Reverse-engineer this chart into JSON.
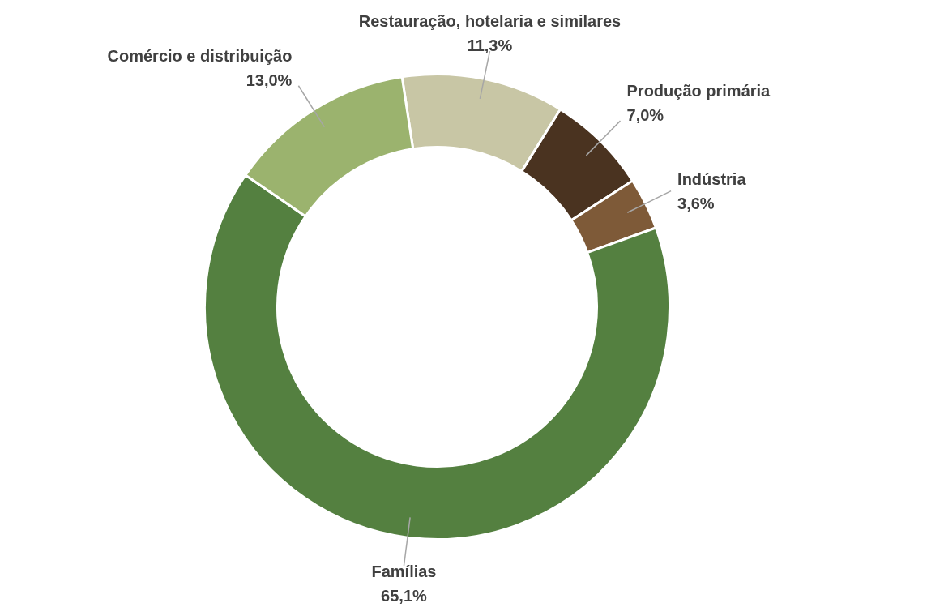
{
  "chart_data": {
    "type": "donut",
    "categories": [
      "Restauração, hotelaria e similares",
      "Produção primária",
      "Indústria",
      "Famílias",
      "Comércio e distribuição"
    ],
    "values": [
      11.3,
      7.0,
      3.6,
      65.1,
      13.0
    ],
    "value_labels": [
      "11,3%",
      "7,0%",
      "3,6%",
      "65,1%",
      "13,0%"
    ],
    "colors": [
      "#c8c6a5",
      "#4a3320",
      "#7e5a38",
      "#548040",
      "#9bb36e"
    ]
  }
}
